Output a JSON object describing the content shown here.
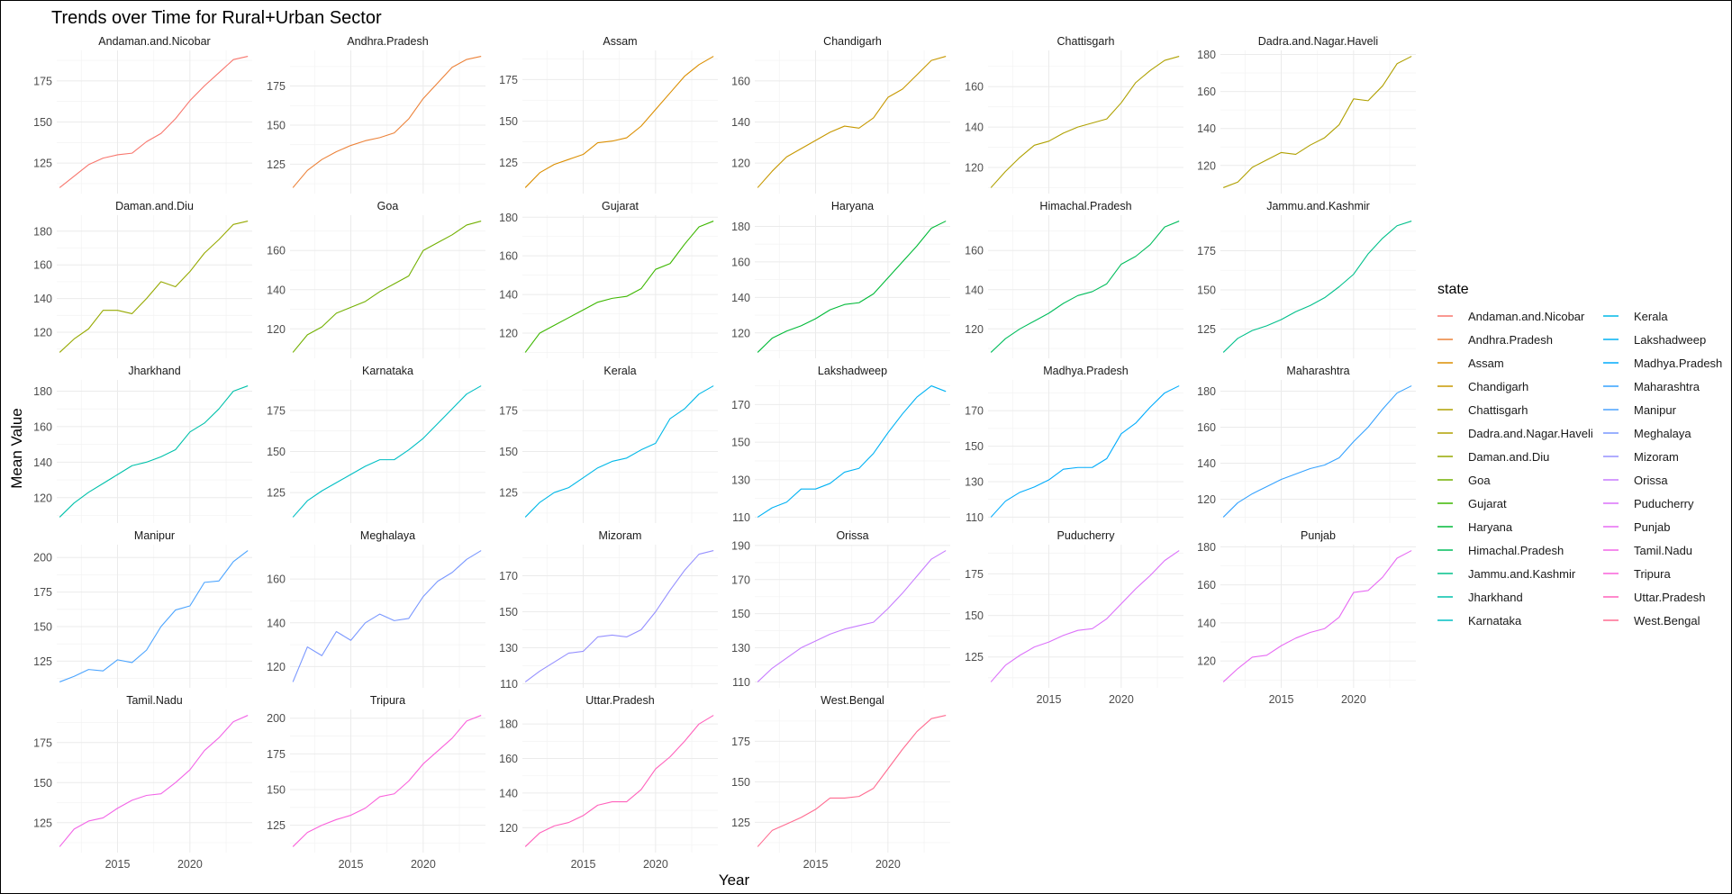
{
  "chart_data": {
    "type": "line",
    "title": "Trends over Time for Rural+Urban Sector",
    "xlabel": "Year",
    "ylabel": "Mean Value",
    "legend_title": "state",
    "legend_position": "right",
    "grid": true,
    "x": [
      2011,
      2012,
      2013,
      2014,
      2015,
      2016,
      2017,
      2018,
      2019,
      2020,
      2021,
      2022,
      2023,
      2024
    ],
    "x_ticks": [
      2015,
      2020
    ],
    "xlim": [
      2010.8,
      2024.3
    ],
    "series": [
      {
        "name": "Andaman.and.Nicobar",
        "color": "#F8766D",
        "values": [
          110,
          117,
          124,
          128,
          130,
          131,
          138,
          143,
          152,
          163,
          172,
          180,
          188,
          190
        ],
        "y_ticks": [
          125,
          150,
          175
        ]
      },
      {
        "name": "Andhra.Pradesh",
        "color": "#EC8239",
        "values": [
          110,
          121,
          128,
          133,
          137,
          140,
          142,
          145,
          154,
          167,
          177,
          187,
          192,
          194
        ],
        "y_ticks": [
          125,
          150,
          175
        ]
      },
      {
        "name": "Assam",
        "color": "#DB8E00",
        "values": [
          110,
          119,
          124,
          127,
          130,
          137,
          138,
          140,
          147,
          157,
          167,
          177,
          184,
          189
        ],
        "y_ticks": [
          125,
          150,
          175
        ]
      },
      {
        "name": "Chandigarh",
        "color": "#C79800",
        "values": [
          108,
          116,
          123,
          127,
          131,
          135,
          138,
          137,
          142,
          152,
          156,
          163,
          170,
          172
        ],
        "y_ticks": [
          120,
          140,
          160
        ]
      },
      {
        "name": "Chattisgarh",
        "color": "#AFA100",
        "values": [
          110,
          118,
          125,
          131,
          133,
          137,
          140,
          142,
          144,
          152,
          162,
          168,
          173,
          175
        ],
        "y_ticks": [
          120,
          140,
          160
        ]
      },
      {
        "name": "Dadra.and.Nagar.Haveli",
        "color": "#B0A000",
        "values": [
          108,
          111,
          119,
          123,
          127,
          126,
          131,
          135,
          142,
          156,
          155,
          163,
          175,
          179
        ],
        "y_ticks": [
          120,
          140,
          160,
          180
        ]
      },
      {
        "name": "Daman.and.Diu",
        "color": "#96A900",
        "values": [
          108,
          116,
          122,
          133,
          133,
          131,
          140,
          150,
          147,
          156,
          167,
          175,
          184,
          186
        ],
        "y_ticks": [
          120,
          140,
          160,
          180
        ]
      },
      {
        "name": "Goa",
        "color": "#72B000",
        "values": [
          108,
          117,
          121,
          128,
          131,
          134,
          139,
          143,
          147,
          160,
          164,
          168,
          173,
          175
        ],
        "y_ticks": [
          120,
          140,
          160
        ]
      },
      {
        "name": "Gujarat",
        "color": "#3DB700",
        "values": [
          110,
          120,
          124,
          128,
          132,
          136,
          138,
          139,
          143,
          153,
          156,
          166,
          175,
          178
        ],
        "y_ticks": [
          120,
          140,
          160,
          180
        ]
      },
      {
        "name": "Haryana",
        "color": "#00BA38",
        "values": [
          109,
          117,
          121,
          124,
          128,
          133,
          136,
          137,
          142,
          151,
          160,
          169,
          179,
          183
        ],
        "y_ticks": [
          120,
          140,
          160,
          180
        ]
      },
      {
        "name": "Himachal.Pradesh",
        "color": "#00BD5C",
        "values": [
          108,
          115,
          120,
          124,
          128,
          133,
          137,
          139,
          143,
          153,
          157,
          163,
          172,
          175
        ],
        "y_ticks": [
          120,
          140,
          160
        ]
      },
      {
        "name": "Jammu.and.Kashmir",
        "color": "#00C08B",
        "values": [
          110,
          119,
          124,
          127,
          131,
          136,
          140,
          145,
          152,
          160,
          173,
          183,
          191,
          194
        ],
        "y_ticks": [
          125,
          150,
          175
        ]
      },
      {
        "name": "Jharkhand",
        "color": "#00C1AA",
        "values": [
          109,
          117,
          123,
          128,
          133,
          138,
          140,
          143,
          147,
          157,
          162,
          170,
          180,
          183
        ],
        "y_ticks": [
          120,
          140,
          160,
          180
        ]
      },
      {
        "name": "Karnataka",
        "color": "#00BFC4",
        "values": [
          110,
          120,
          126,
          131,
          136,
          141,
          145,
          145,
          151,
          158,
          167,
          176,
          185,
          190
        ],
        "y_ticks": [
          125,
          150,
          175
        ]
      },
      {
        "name": "Kerala",
        "color": "#00B8E7",
        "values": [
          110,
          119,
          125,
          128,
          134,
          140,
          144,
          146,
          151,
          155,
          170,
          176,
          185,
          190
        ],
        "y_ticks": [
          125,
          150,
          175
        ]
      },
      {
        "name": "Lakshadweep",
        "color": "#00B2F3",
        "values": [
          110,
          115,
          118,
          125,
          125,
          128,
          134,
          136,
          144,
          155,
          165,
          174,
          180,
          177
        ],
        "y_ticks": [
          110,
          130,
          150,
          170
        ]
      },
      {
        "name": "Madhya.Pradesh",
        "color": "#00ACFC",
        "values": [
          110,
          119,
          124,
          127,
          131,
          137,
          138,
          138,
          143,
          157,
          163,
          172,
          180,
          184
        ],
        "y_ticks": [
          110,
          130,
          150,
          170
        ]
      },
      {
        "name": "Maharashtra",
        "color": "#35A2FF",
        "values": [
          110,
          118,
          123,
          127,
          131,
          134,
          137,
          139,
          143,
          152,
          160,
          170,
          179,
          183
        ],
        "y_ticks": [
          120,
          140,
          160,
          180
        ]
      },
      {
        "name": "Manipur",
        "color": "#4BA4FF",
        "values": [
          110,
          114,
          119,
          118,
          126,
          124,
          133,
          150,
          162,
          165,
          182,
          183,
          197,
          205
        ],
        "y_ticks": [
          125,
          150,
          175,
          200
        ]
      },
      {
        "name": "Meghalaya",
        "color": "#7997FF",
        "values": [
          113,
          129,
          125,
          136,
          132,
          140,
          144,
          141,
          142,
          152,
          159,
          163,
          169,
          173
        ],
        "y_ticks": [
          120,
          140,
          160
        ]
      },
      {
        "name": "Mizoram",
        "color": "#9590FF",
        "values": [
          111,
          117,
          122,
          127,
          128,
          136,
          137,
          136,
          140,
          150,
          162,
          173,
          182,
          184
        ],
        "y_ticks": [
          110,
          130,
          150,
          170
        ]
      },
      {
        "name": "Orissa",
        "color": "#C77CFF",
        "values": [
          110,
          118,
          124,
          130,
          134,
          138,
          141,
          143,
          145,
          153,
          162,
          172,
          182,
          187
        ],
        "y_ticks": [
          110,
          130,
          150,
          170,
          190
        ]
      },
      {
        "name": "Puducherry",
        "color": "#DC71FA",
        "values": [
          110,
          120,
          126,
          131,
          134,
          138,
          141,
          142,
          148,
          157,
          166,
          174,
          183,
          189
        ],
        "y_ticks": [
          125,
          150,
          175
        ]
      },
      {
        "name": "Punjab",
        "color": "#E76BF3",
        "values": [
          109,
          116,
          122,
          123,
          128,
          132,
          135,
          137,
          143,
          156,
          157,
          164,
          174,
          178
        ],
        "y_ticks": [
          120,
          140,
          160,
          180
        ]
      },
      {
        "name": "Tamil.Nadu",
        "color": "#F265E7",
        "values": [
          110,
          121,
          126,
          128,
          134,
          139,
          142,
          143,
          150,
          158,
          170,
          178,
          188,
          192
        ],
        "y_ticks": [
          125,
          150,
          175
        ]
      },
      {
        "name": "Tripura",
        "color": "#FA62DB",
        "values": [
          110,
          120,
          125,
          129,
          132,
          137,
          145,
          147,
          156,
          168,
          177,
          186,
          198,
          202
        ],
        "y_ticks": [
          125,
          150,
          175,
          200
        ]
      },
      {
        "name": "Uttar.Pradesh",
        "color": "#FF62BC",
        "values": [
          109,
          117,
          121,
          123,
          127,
          133,
          135,
          135,
          142,
          154,
          161,
          170,
          180,
          185
        ],
        "y_ticks": [
          120,
          140,
          160,
          180
        ]
      },
      {
        "name": "West.Bengal",
        "color": "#FF6C91",
        "values": [
          110,
          120,
          124,
          128,
          133,
          140,
          140,
          141,
          146,
          158,
          170,
          181,
          189,
          191
        ],
        "y_ticks": [
          125,
          150,
          175
        ]
      }
    ]
  }
}
